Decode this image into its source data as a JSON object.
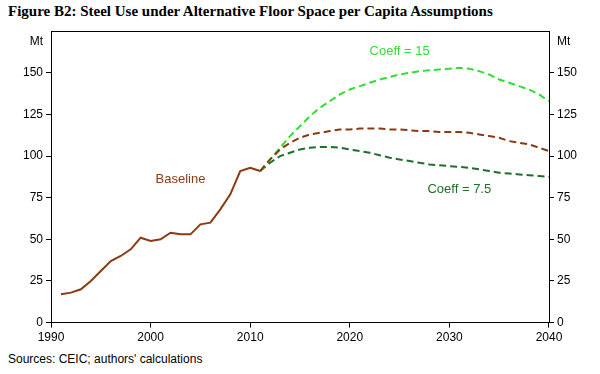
{
  "chart_data": {
    "type": "line",
    "title": "Figure B2: Steel Use under Alternative Floor Space per Capita Assumptions",
    "source": "Sources: CEIC; authors' calculations",
    "ylabel": "Mt",
    "y2label": "Mt",
    "x": [
      1991,
      1992,
      1993,
      1994,
      1995,
      1996,
      1997,
      1998,
      1999,
      2000,
      2001,
      2002,
      2003,
      2004,
      2005,
      2006,
      2007,
      2008,
      2009,
      2010,
      2011,
      2012,
      2013,
      2014,
      2015,
      2016,
      2017,
      2018,
      2019,
      2020,
      2021,
      2022,
      2023,
      2024,
      2025,
      2026,
      2027,
      2028,
      2029,
      2030,
      2031,
      2032,
      2033,
      2034,
      2035,
      2036,
      2037,
      2038,
      2039,
      2040
    ],
    "xlim": [
      1990,
      2040
    ],
    "xticks": [
      1990,
      2000,
      2010,
      2020,
      2030,
      2040
    ],
    "ylim": [
      0,
      175
    ],
    "yticks": [
      0,
      25,
      50,
      75,
      100,
      125,
      150
    ],
    "y2lim": [
      0,
      175
    ],
    "y2ticks": [
      0,
      25,
      50,
      75,
      100,
      125,
      150
    ],
    "grid": false,
    "series": [
      {
        "name": "Baseline",
        "color": "#8b3a12",
        "line_style": "solid",
        "dashed_from": 2011,
        "label_at": {
          "x": 2003,
          "y": 86
        },
        "values": [
          17,
          18,
          20,
          25,
          31,
          37,
          40,
          44,
          51,
          49,
          50,
          54,
          53,
          53,
          59,
          60,
          68,
          77,
          91,
          93,
          91,
          98,
          104,
          108,
          111,
          113,
          114,
          115,
          116,
          116,
          116.5,
          116.5,
          116.5,
          116,
          116,
          115.5,
          115,
          115,
          114.5,
          114.5,
          114.5,
          114,
          113,
          112,
          111,
          109,
          108,
          107,
          105,
          103
        ]
      },
      {
        "name": "Coeff = 15",
        "color": "#33dd33",
        "line_style": "dashed",
        "label_at": {
          "x": 2025,
          "y": 163
        },
        "values": [
          null,
          null,
          null,
          null,
          null,
          null,
          null,
          null,
          null,
          null,
          null,
          null,
          null,
          null,
          null,
          null,
          null,
          null,
          null,
          null,
          91,
          98,
          105,
          112,
          118,
          124,
          129,
          133,
          137,
          140,
          142,
          144,
          146,
          147.5,
          149,
          150,
          151,
          151.5,
          152,
          152.5,
          153,
          152.5,
          151,
          149,
          146,
          144,
          142,
          140,
          137,
          133
        ]
      },
      {
        "name": "Coeff = 7.5",
        "color": "#1f6e2c",
        "line_style": "dashed",
        "label_at": {
          "x": 2031,
          "y": 80
        },
        "values": [
          null,
          null,
          null,
          null,
          null,
          null,
          null,
          null,
          null,
          null,
          null,
          null,
          null,
          null,
          null,
          null,
          null,
          null,
          null,
          null,
          91,
          96,
          100,
          102,
          104,
          105,
          105.5,
          105.5,
          105,
          104,
          103,
          102,
          100.5,
          99,
          98,
          97,
          96,
          95,
          94.5,
          94,
          93.5,
          93,
          92,
          91,
          90,
          89.5,
          89,
          88.5,
          88,
          87.5
        ]
      }
    ]
  }
}
